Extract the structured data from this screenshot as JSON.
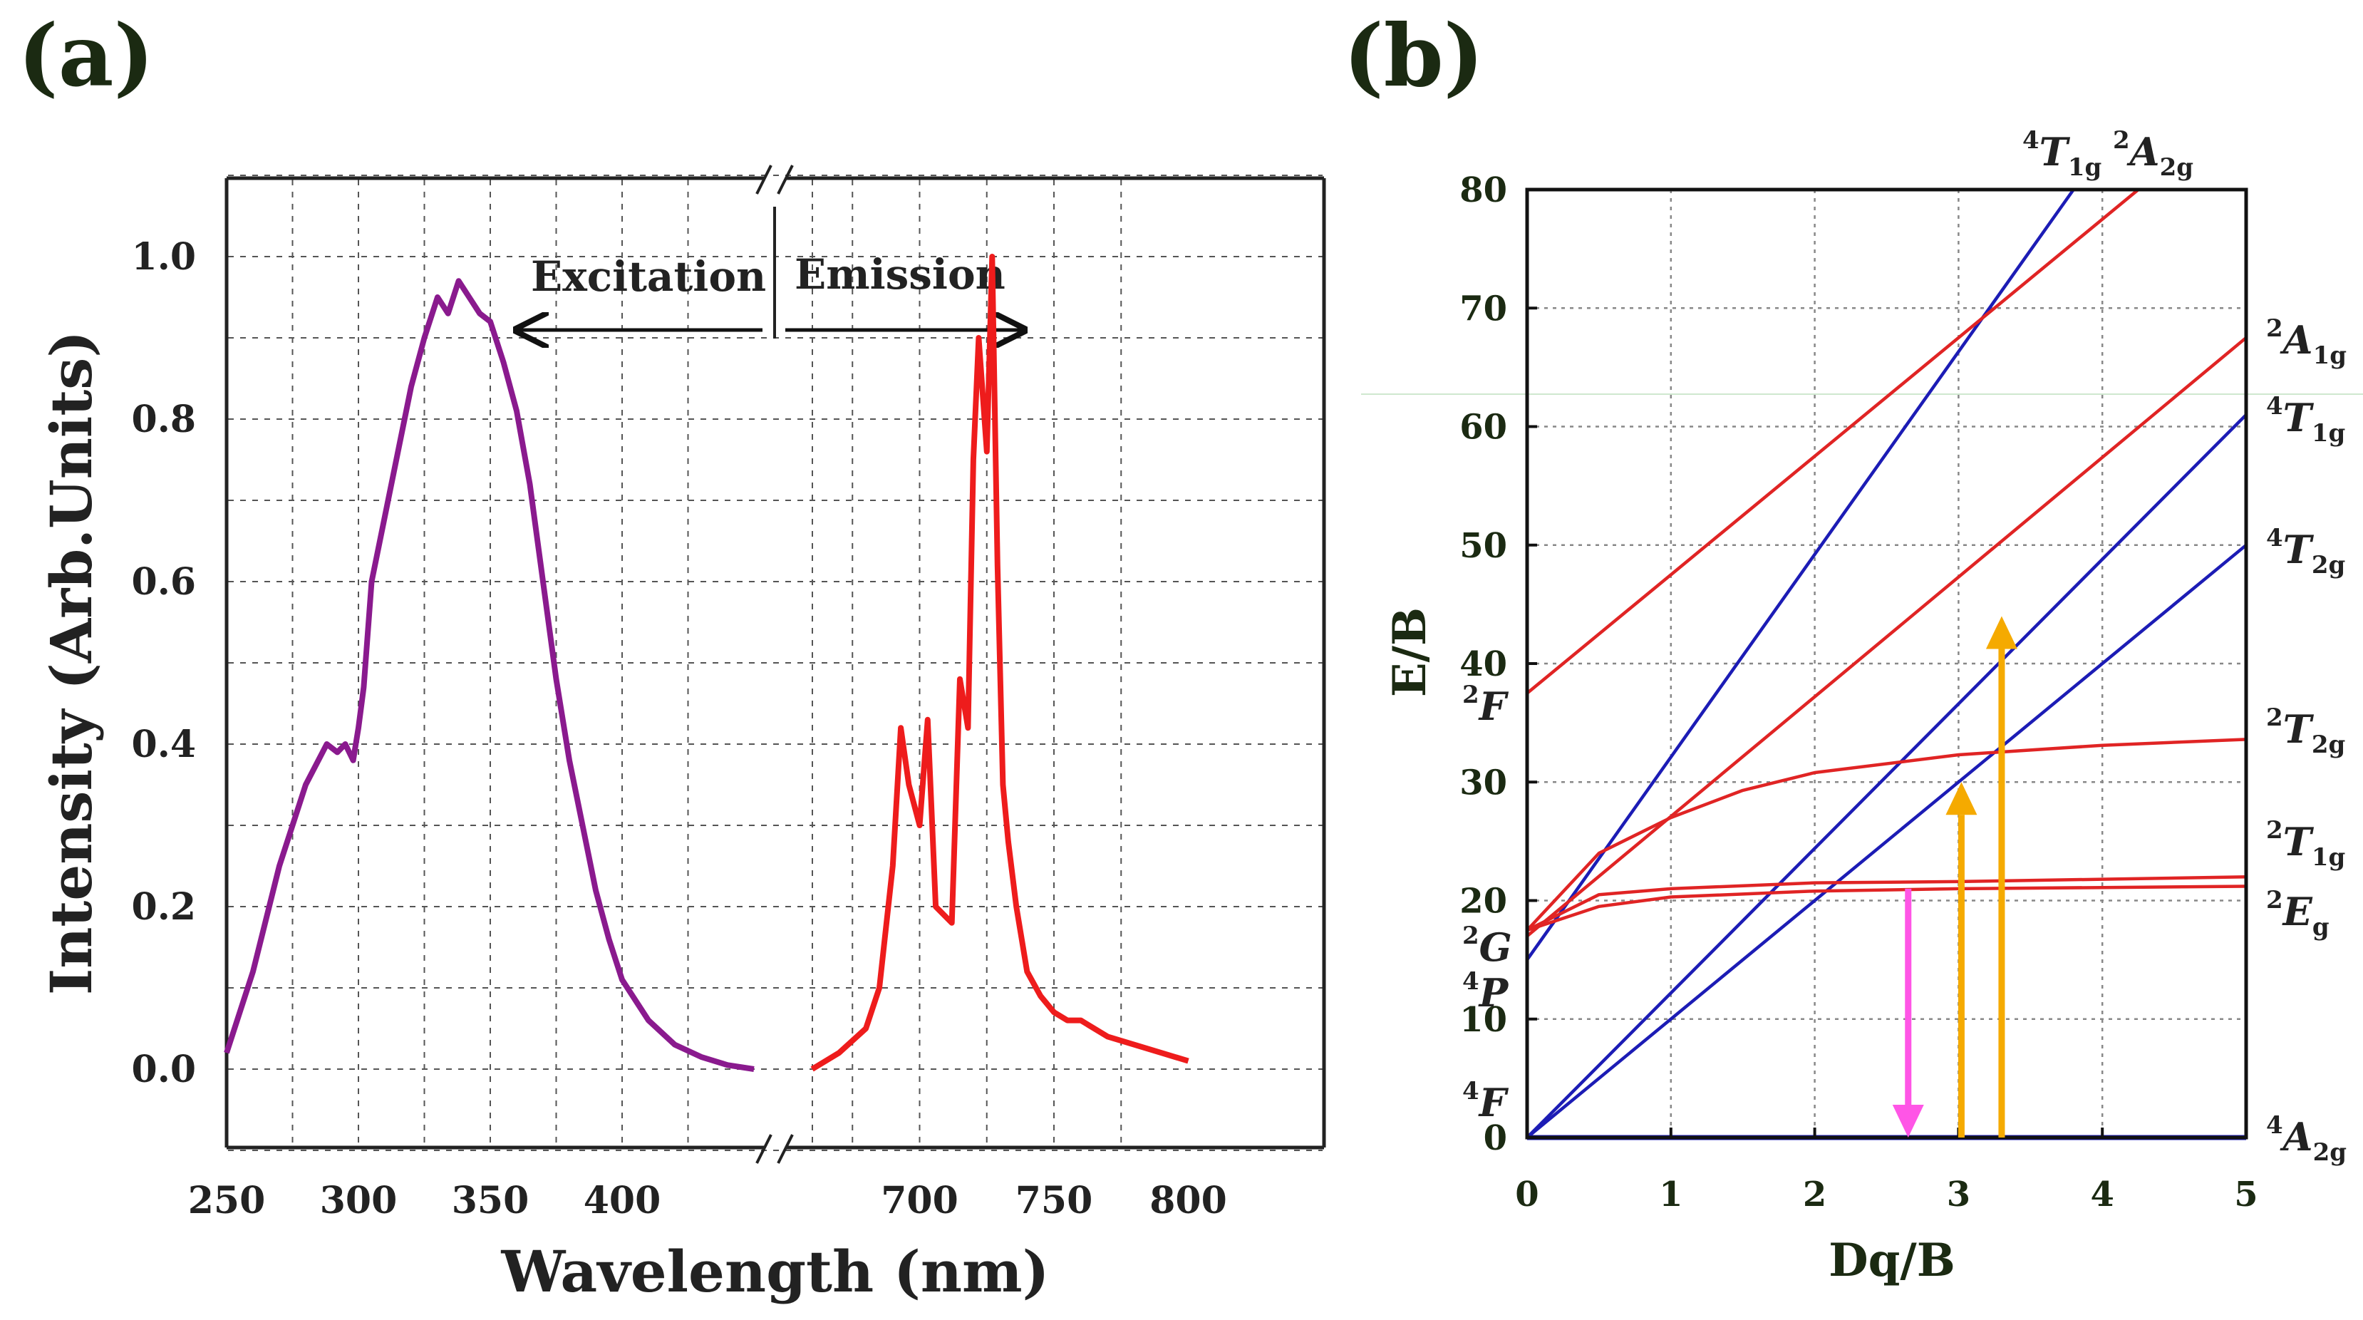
{
  "panels": {
    "a": {
      "label": "(a)",
      "xlabel": "Wavelength (nm)",
      "ylabel": "Intensity (Arb.Units)",
      "x_ticks": [
        "250",
        "300",
        "350",
        "400",
        "700",
        "750",
        "800"
      ],
      "y_ticks": [
        "0.0",
        "0.2",
        "0.4",
        "0.6",
        "0.8",
        "1.0"
      ],
      "annotations": {
        "excitation": "Excitation",
        "emission": "Emission"
      }
    },
    "b": {
      "label": "(b)",
      "xlabel": "Dq/B",
      "ylabel": "E/B",
      "x_ticks": [
        "0",
        "1",
        "2",
        "3",
        "4",
        "5"
      ],
      "y_ticks": [
        "0",
        "10",
        "20",
        "30",
        "40",
        "50",
        "60",
        "70",
        "80"
      ],
      "terms": {
        "T1g_top": {
          "sup": "4",
          "base": "T",
          "sub": "1g"
        },
        "A2g_top": {
          "sup": "2",
          "base": "A",
          "sub": "2g"
        },
        "A1g": {
          "sup": "2",
          "base": "A",
          "sub": "1g"
        },
        "T1g_4": {
          "sup": "4",
          "base": "T",
          "sub": "1g"
        },
        "T2g_4": {
          "sup": "4",
          "base": "T",
          "sub": "2g"
        },
        "T2g_2": {
          "sup": "2",
          "base": "T",
          "sub": "2g"
        },
        "T1g_2": {
          "sup": "2",
          "base": "T",
          "sub": "1g"
        },
        "Eg": {
          "sup": "2",
          "base": "E",
          "sub": "g"
        },
        "A2g": {
          "sup": "4",
          "base": "A",
          "sub": "2g"
        },
        "F2": {
          "sup": "2",
          "base": "F"
        },
        "G2": {
          "sup": "2",
          "base": "G"
        },
        "P4": {
          "sup": "4",
          "base": "P"
        },
        "F4": {
          "sup": "4",
          "base": "F"
        }
      }
    }
  },
  "colors": {
    "excitation": "#8a1a8e",
    "emission": "#ee1c1c",
    "blue_line": "#1c1cb5",
    "red_line": "#e02424",
    "absorption_arrow": "#f5aa00",
    "emission_arrow": "#ff55e6"
  },
  "chart_data": [
    {
      "type": "line",
      "title": "(a)",
      "xlabel": "Wavelength (nm)",
      "ylabel": "Intensity (Arb.Units)",
      "x_axis_break": true,
      "ylim": [
        -0.1,
        1.1
      ],
      "series": [
        {
          "name": "Excitation",
          "x": [
            250,
            260,
            270,
            280,
            288,
            292,
            295,
            298,
            300,
            302,
            305,
            310,
            315,
            320,
            325,
            330,
            334,
            338,
            342,
            346,
            350,
            355,
            360,
            365,
            370,
            375,
            380,
            385,
            390,
            395,
            400,
            410,
            420,
            430,
            440,
            450
          ],
          "y": [
            0.02,
            0.12,
            0.25,
            0.35,
            0.4,
            0.39,
            0.4,
            0.38,
            0.42,
            0.47,
            0.6,
            0.68,
            0.76,
            0.84,
            0.9,
            0.95,
            0.93,
            0.97,
            0.95,
            0.93,
            0.92,
            0.87,
            0.81,
            0.72,
            0.6,
            0.48,
            0.38,
            0.3,
            0.22,
            0.16,
            0.11,
            0.06,
            0.03,
            0.015,
            0.005,
            0.0
          ]
        },
        {
          "name": "Emission",
          "x": [
            660,
            670,
            680,
            685,
            690,
            693,
            696,
            700,
            703,
            706,
            709,
            712,
            715,
            718,
            720,
            722,
            725,
            727,
            729,
            731,
            733,
            736,
            740,
            745,
            750,
            755,
            760,
            770,
            780,
            790,
            800
          ],
          "y": [
            0.0,
            0.02,
            0.05,
            0.1,
            0.25,
            0.42,
            0.35,
            0.3,
            0.43,
            0.2,
            0.19,
            0.18,
            0.48,
            0.42,
            0.75,
            0.9,
            0.76,
            1.0,
            0.62,
            0.35,
            0.28,
            0.2,
            0.12,
            0.09,
            0.07,
            0.06,
            0.06,
            0.04,
            0.03,
            0.02,
            0.01
          ]
        }
      ]
    },
    {
      "type": "line",
      "title": "(b)",
      "xlabel": "Dq/B",
      "ylabel": "E/B",
      "xlim": [
        0,
        5
      ],
      "ylim": [
        0,
        80
      ],
      "series": [
        {
          "name": "4A2g",
          "color": "blue",
          "x": [
            0,
            5
          ],
          "y": [
            0,
            0
          ]
        },
        {
          "name": "4T2g",
          "color": "blue",
          "x": [
            0,
            5
          ],
          "y": [
            0,
            50
          ]
        },
        {
          "name": "4T1g(F)",
          "color": "blue",
          "x": [
            0,
            5
          ],
          "y": [
            0,
            61
          ]
        },
        {
          "name": "4T1g(P)",
          "color": "blue",
          "x": [
            0,
            3.8
          ],
          "y": [
            15,
            80
          ]
        },
        {
          "name": "2A2g",
          "color": "red",
          "x": [
            0,
            4.25
          ],
          "y": [
            37.5,
            80
          ]
        },
        {
          "name": "2A1g",
          "color": "red",
          "x": [
            0,
            5
          ],
          "y": [
            17,
            67.5
          ]
        },
        {
          "name": "2T2g",
          "color": "red",
          "x": [
            0,
            0.5,
            1,
            1.5,
            2,
            3,
            4,
            5
          ],
          "y": [
            17.5,
            24,
            27,
            29.3,
            30.8,
            32.3,
            33.1,
            33.6
          ]
        },
        {
          "name": "2T1g",
          "color": "red",
          "x": [
            0,
            0.5,
            1,
            2,
            3,
            4,
            5
          ],
          "y": [
            17.5,
            20.5,
            21,
            21.5,
            21.6,
            21.8,
            22
          ]
        },
        {
          "name": "2Eg",
          "color": "red",
          "x": [
            0,
            0.5,
            1,
            2,
            3,
            4,
            5
          ],
          "y": [
            17.5,
            19.5,
            20.3,
            20.8,
            21,
            21.1,
            21.2
          ]
        }
      ],
      "arrows": [
        {
          "type": "emission",
          "x": 2.65,
          "from": 21,
          "to": 0
        },
        {
          "type": "absorption",
          "x": 3.02,
          "from": 0,
          "to": 30
        },
        {
          "type": "absorption",
          "x": 3.3,
          "from": 0,
          "to": 44
        }
      ]
    }
  ]
}
